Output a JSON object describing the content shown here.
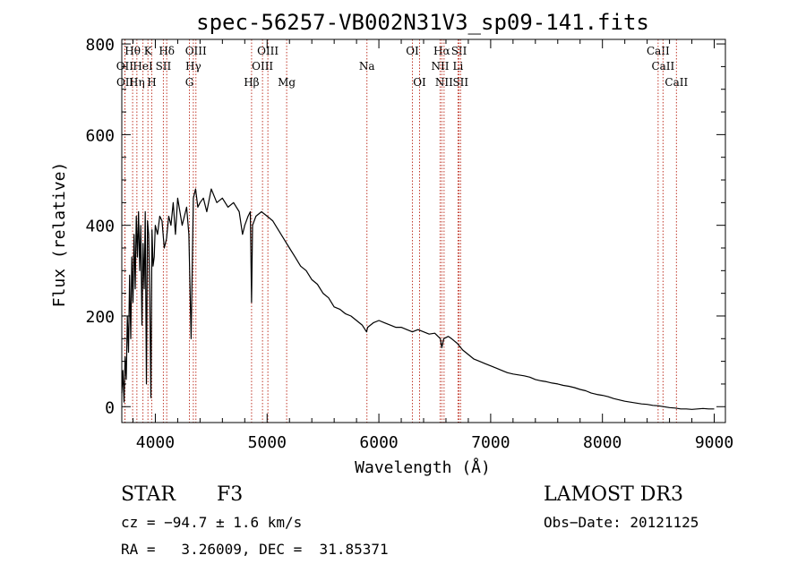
{
  "chart_data": {
    "type": "line",
    "title": "spec-56257-VB002N31V3_sp09-141.fits",
    "xlabel": "Wavelength (Å)",
    "ylabel": "Flux (relative)",
    "xlim": [
      3700,
      9100
    ],
    "ylim": [
      -35,
      810
    ],
    "xticks": [
      {
        "value": 4000,
        "label": "4000"
      },
      {
        "value": 5000,
        "label": "5000"
      },
      {
        "value": 6000,
        "label": "6000"
      },
      {
        "value": 7000,
        "label": "7000"
      },
      {
        "value": 8000,
        "label": "8000"
      },
      {
        "value": 9000,
        "label": "9000"
      }
    ],
    "yticks": [
      {
        "value": 0,
        "label": "0"
      },
      {
        "value": 200,
        "label": "200"
      },
      {
        "value": 400,
        "label": "400"
      },
      {
        "value": 600,
        "label": "600"
      },
      {
        "value": 800,
        "label": "800"
      }
    ],
    "line_color": "#000000",
    "marker_color": "#c0392b",
    "series": [
      {
        "name": "flux",
        "x": [
          3700,
          3710,
          3720,
          3730,
          3740,
          3750,
          3760,
          3770,
          3780,
          3790,
          3800,
          3810,
          3820,
          3830,
          3840,
          3850,
          3860,
          3870,
          3880,
          3890,
          3900,
          3910,
          3920,
          3930,
          3940,
          3950,
          3960,
          3970,
          3980,
          3990,
          4000,
          4020,
          4040,
          4060,
          4080,
          4100,
          4120,
          4140,
          4160,
          4180,
          4200,
          4220,
          4240,
          4260,
          4280,
          4300,
          4320,
          4340,
          4360,
          4380,
          4400,
          4430,
          4460,
          4500,
          4550,
          4600,
          4650,
          4700,
          4750,
          4780,
          4800,
          4830,
          4850,
          4861,
          4870,
          4900,
          4950,
          5000,
          5050,
          5100,
          5150,
          5200,
          5250,
          5300,
          5350,
          5400,
          5450,
          5500,
          5550,
          5600,
          5650,
          5700,
          5750,
          5800,
          5850,
          5890,
          5900,
          5950,
          6000,
          6050,
          6100,
          6150,
          6200,
          6250,
          6300,
          6350,
          6400,
          6450,
          6500,
          6550,
          6563,
          6580,
          6620,
          6650,
          6700,
          6750,
          6800,
          6850,
          6900,
          6950,
          7000,
          7050,
          7100,
          7150,
          7200,
          7250,
          7300,
          7350,
          7400,
          7450,
          7500,
          7550,
          7600,
          7650,
          7700,
          7750,
          7800,
          7850,
          7900,
          7950,
          8000,
          8050,
          8100,
          8150,
          8200,
          8250,
          8300,
          8350,
          8400,
          8450,
          8500,
          8550,
          8600,
          8650,
          8700,
          8750,
          8800,
          8850,
          8900,
          8950,
          9000
        ],
        "y": [
          30,
          80,
          10,
          110,
          60,
          200,
          120,
          290,
          150,
          330,
          230,
          380,
          260,
          420,
          330,
          430,
          300,
          400,
          180,
          360,
          260,
          430,
          50,
          410,
          380,
          250,
          20,
          390,
          310,
          330,
          400,
          380,
          420,
          410,
          350,
          370,
          420,
          400,
          450,
          380,
          460,
          430,
          400,
          420,
          440,
          380,
          150,
          460,
          480,
          440,
          450,
          460,
          430,
          480,
          450,
          460,
          440,
          450,
          430,
          380,
          400,
          420,
          430,
          230,
          400,
          420,
          430,
          420,
          410,
          390,
          370,
          350,
          330,
          310,
          300,
          280,
          270,
          250,
          240,
          220,
          215,
          205,
          200,
          190,
          180,
          165,
          175,
          185,
          190,
          185,
          180,
          175,
          175,
          170,
          165,
          170,
          165,
          160,
          162,
          150,
          130,
          150,
          155,
          150,
          140,
          125,
          115,
          105,
          100,
          95,
          90,
          85,
          80,
          75,
          72,
          70,
          68,
          65,
          60,
          57,
          55,
          52,
          50,
          47,
          45,
          42,
          38,
          35,
          30,
          27,
          25,
          22,
          18,
          15,
          12,
          10,
          8,
          6,
          5,
          3,
          2,
          0,
          -2,
          -3,
          -5,
          -5,
          -6,
          -5,
          -4,
          -5,
          -5
        ]
      }
    ],
    "spectral_lines": [
      {
        "label": "Hθ",
        "wavelength": 3797,
        "row": 1
      },
      {
        "label": "K",
        "wavelength": 3934,
        "row": 1
      },
      {
        "label": "Hδ",
        "wavelength": 4102,
        "row": 1
      },
      {
        "label": "OIII",
        "wavelength": 4363,
        "row": 1
      },
      {
        "label": "OIII",
        "wavelength": 5007,
        "row": 1
      },
      {
        "label": "OI",
        "wavelength": 6300,
        "row": 1
      },
      {
        "label": "Hα",
        "wavelength": 6563,
        "row": 1
      },
      {
        "label": "SII",
        "wavelength": 6717,
        "row": 1
      },
      {
        "label": "CaII",
        "wavelength": 8498,
        "row": 1
      },
      {
        "label": "OII",
        "wavelength": 3727,
        "row": 2
      },
      {
        "label": "HeI",
        "wavelength": 3889,
        "row": 2
      },
      {
        "label": "SII",
        "wavelength": 4072,
        "row": 2
      },
      {
        "label": "Hγ",
        "wavelength": 4340,
        "row": 2
      },
      {
        "label": "OIII",
        "wavelength": 4959,
        "row": 2
      },
      {
        "label": "Na",
        "wavelength": 5893,
        "row": 2
      },
      {
        "label": "NII",
        "wavelength": 6548,
        "row": 2
      },
      {
        "label": "Li",
        "wavelength": 6708,
        "row": 2
      },
      {
        "label": "CaII",
        "wavelength": 8542,
        "row": 2
      },
      {
        "label": "OII",
        "wavelength": 3729,
        "row": 3
      },
      {
        "label": "Hη",
        "wavelength": 3835,
        "row": 3
      },
      {
        "label": "H",
        "wavelength": 3968,
        "row": 3
      },
      {
        "label": "G",
        "wavelength": 4305,
        "row": 3
      },
      {
        "label": "Hβ",
        "wavelength": 4861,
        "row": 3
      },
      {
        "label": "Mg",
        "wavelength": 5175,
        "row": 3
      },
      {
        "label": "OI",
        "wavelength": 6364,
        "row": 3
      },
      {
        "label": "NII",
        "wavelength": 6583,
        "row": 3
      },
      {
        "label": "SII",
        "wavelength": 6731,
        "row": 3
      },
      {
        "label": "CaII",
        "wavelength": 8662,
        "row": 3
      }
    ]
  },
  "footer": {
    "object_class": "STAR",
    "subclass": "F3",
    "survey": "LAMOST DR3",
    "cz": "cz = −94.7 ± 1.6 km/s",
    "obs_date": "Obs−Date: 20121125",
    "coords": "RA =   3.26009, DEC =  31.85371"
  }
}
